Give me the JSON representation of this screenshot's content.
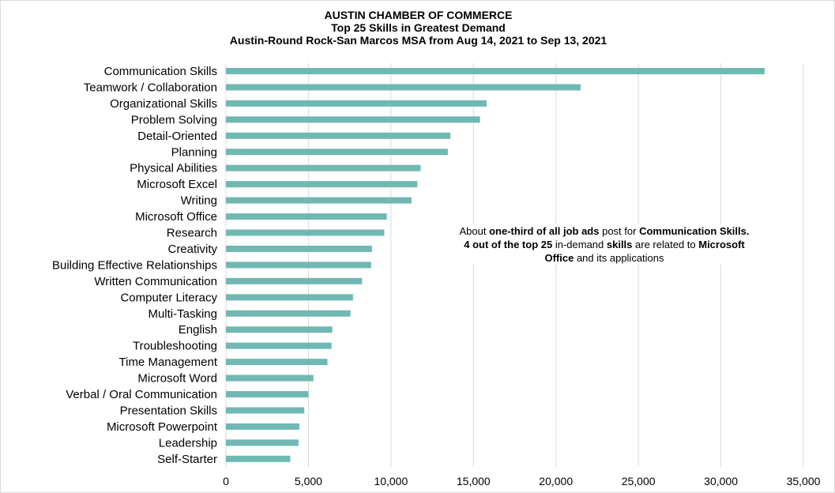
{
  "chart_data": {
    "type": "bar",
    "orientation": "horizontal",
    "title": "AUSTIN CHAMBER OF COMMERCE",
    "subtitle": "Top 25 Skills in Greatest Demand",
    "subtitle2": "Austin-Round Rock-San Marcos MSA from Aug 14, 2021 to Sep 13, 2021",
    "xlabel": "",
    "ylabel": "",
    "xlim": [
      0,
      35000
    ],
    "x_ticks": [
      "0",
      "5,000",
      "10,000",
      "15,000",
      "20,000",
      "25,000",
      "30,000",
      "35,000"
    ],
    "grid": "vertical",
    "bar_color": "#70b8b4",
    "categories": [
      "Communication Skills",
      "Teamwork / Collaboration",
      "Organizational Skills",
      "Problem Solving",
      "Detail-Oriented",
      "Planning",
      "Physical Abilities",
      "Microsoft Excel",
      "Writing",
      "Microsoft Office",
      "Research",
      "Creativity",
      "Building Effective Relationships",
      "Written Communication",
      "Computer Literacy",
      "Multi-Tasking",
      "English",
      "Troubleshooting",
      "Time Management",
      "Microsoft Word",
      "Verbal / Oral Communication",
      "Presentation Skills",
      "Microsoft Powerpoint",
      "Leadership",
      "Self-Starter"
    ],
    "values": [
      32650,
      21500,
      15800,
      15400,
      13600,
      13450,
      11800,
      11600,
      11250,
      9750,
      9600,
      8850,
      8800,
      8250,
      7700,
      7550,
      6450,
      6400,
      6150,
      5300,
      5000,
      4750,
      4450,
      4400,
      3900
    ],
    "annotation": {
      "line1_plain_a": "About ",
      "line1_bold_a": "one-third of all job ads",
      "line1_plain_b": " post for ",
      "line1_bold_b": "Communication  Skills.",
      "line2_bold_a": "4 out of the top 25",
      "line2_plain_a": " in-demand ",
      "line2_bold_b": "skills",
      "line2_plain_b": " are related to ",
      "line2_bold_c": "Microsoft",
      "line3_bold_a": "Office",
      "line3_plain_a": " and its applications"
    }
  }
}
